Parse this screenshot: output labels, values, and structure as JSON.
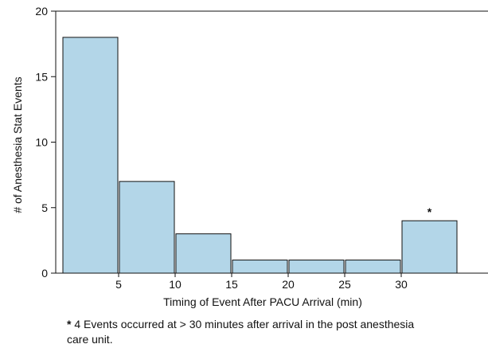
{
  "chart_data": {
    "type": "bar",
    "title": "",
    "xlabel": "Timing of Event After PACU Arrival (min)",
    "ylabel": "# of Anesthesia Stat Events",
    "ylim": [
      0,
      20
    ],
    "yticks": [
      "0",
      "5",
      "10",
      "15",
      "20"
    ],
    "xticks": [
      "5",
      "10",
      "15",
      "20",
      "25",
      "30"
    ],
    "series": [
      {
        "bins": [
          {
            "range": [
              0,
              5
            ],
            "value": 18
          },
          {
            "range": [
              5,
              10
            ],
            "value": 7
          },
          {
            "range": [
              10,
              15
            ],
            "value": 3
          },
          {
            "range": [
              15,
              20
            ],
            "value": 1
          },
          {
            "range": [
              20,
              25
            ],
            "value": 1
          },
          {
            "range": [
              25,
              30
            ],
            "value": 1
          },
          {
            "range": [
              30,
              35
            ],
            "value": 4
          }
        ]
      }
    ],
    "bar_color": "#b3d6e8",
    "grid": false,
    "annotations": [
      {
        "text": "*",
        "bin_index": 6
      }
    ]
  },
  "footnote": {
    "marker": "*",
    "text": " 4 Events occurred at > 30 minutes after arrival in the post anesthesia care unit."
  }
}
